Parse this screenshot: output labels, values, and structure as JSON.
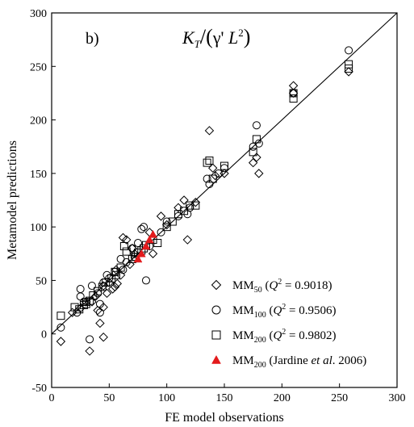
{
  "chart_data": {
    "type": "scatter",
    "panel_label": "b)",
    "formula": "K_T/(γ' L^2)",
    "xlabel": "FE model observations",
    "ylabel": "Metamodel predictions",
    "xlim": [
      0,
      300
    ],
    "ylim": [
      -50,
      300
    ],
    "x_ticks": [
      0,
      50,
      100,
      150,
      200,
      250,
      300
    ],
    "y_ticks": [
      -50,
      0,
      50,
      100,
      150,
      200,
      250,
      300
    ],
    "reference_line": "y = x",
    "legend_position": "bottom-right",
    "series": [
      {
        "name": "MM50 (Q2 = 0.9018)",
        "label": {
          "base": "MM",
          "sub": "50",
          "q2_text": " = 0.9018)"
        },
        "marker": "diamond",
        "color": "#000000",
        "points": [
          [
            8,
            -7
          ],
          [
            33,
            -16
          ],
          [
            45,
            -3
          ],
          [
            42,
            10
          ],
          [
            18,
            20
          ],
          [
            25,
            24
          ],
          [
            30,
            30
          ],
          [
            35,
            30
          ],
          [
            38,
            35
          ],
          [
            45,
            45
          ],
          [
            50,
            48
          ],
          [
            55,
            44
          ],
          [
            57,
            47
          ],
          [
            40,
            22
          ],
          [
            45,
            25
          ],
          [
            60,
            55
          ],
          [
            62,
            90
          ],
          [
            65,
            88
          ],
          [
            70,
            80
          ],
          [
            72,
            75
          ],
          [
            85,
            95
          ],
          [
            88,
            75
          ],
          [
            95,
            110
          ],
          [
            100,
            102
          ],
          [
            110,
            118
          ],
          [
            115,
            125
          ],
          [
            118,
            88
          ],
          [
            125,
            123
          ],
          [
            137,
            190
          ],
          [
            140,
            155
          ],
          [
            142,
            148
          ],
          [
            150,
            150
          ],
          [
            175,
            160
          ],
          [
            178,
            165
          ],
          [
            180,
            150
          ],
          [
            210,
            225
          ],
          [
            210,
            232
          ],
          [
            258,
            245
          ],
          [
            53,
            42
          ],
          [
            48,
            38
          ],
          [
            56,
            60
          ],
          [
            68,
            65
          ]
        ]
      },
      {
        "name": "MM100 (Q2 = 0.9506)",
        "label": {
          "base": "MM",
          "sub": "100",
          "q2_text": " = 0.9506)"
        },
        "marker": "circle",
        "color": "#000000",
        "points": [
          [
            8,
            6
          ],
          [
            22,
            20
          ],
          [
            25,
            35
          ],
          [
            25,
            42
          ],
          [
            28,
            30
          ],
          [
            33,
            -5
          ],
          [
            35,
            45
          ],
          [
            42,
            28
          ],
          [
            42,
            20
          ],
          [
            45,
            48
          ],
          [
            50,
            52
          ],
          [
            55,
            58
          ],
          [
            60,
            70
          ],
          [
            62,
            60
          ],
          [
            70,
            80
          ],
          [
            72,
            72
          ],
          [
            75,
            85
          ],
          [
            78,
            98
          ],
          [
            80,
            100
          ],
          [
            82,
            50
          ],
          [
            85,
            82
          ],
          [
            95,
            95
          ],
          [
            100,
            105
          ],
          [
            110,
            110
          ],
          [
            118,
            112
          ],
          [
            120,
            118
          ],
          [
            135,
            145
          ],
          [
            137,
            140
          ],
          [
            145,
            150
          ],
          [
            150,
            155
          ],
          [
            175,
            175
          ],
          [
            178,
            195
          ],
          [
            180,
            178
          ],
          [
            210,
            225
          ],
          [
            258,
            265
          ],
          [
            40,
            38
          ],
          [
            48,
            55
          ],
          [
            65,
            67
          ]
        ]
      },
      {
        "name": "MM200 (Q2 = 0.9802)",
        "label": {
          "base": "MM",
          "sub": "200",
          "q2_text": " = 0.9802)"
        },
        "marker": "square",
        "color": "#000000",
        "points": [
          [
            8,
            17
          ],
          [
            20,
            25
          ],
          [
            24,
            23
          ],
          [
            28,
            27
          ],
          [
            30,
            30
          ],
          [
            33,
            31
          ],
          [
            36,
            36
          ],
          [
            40,
            40
          ],
          [
            44,
            44
          ],
          [
            47,
            48
          ],
          [
            52,
            52
          ],
          [
            56,
            55
          ],
          [
            60,
            62
          ],
          [
            63,
            82
          ],
          [
            65,
            77
          ],
          [
            70,
            70
          ],
          [
            73,
            72
          ],
          [
            75,
            76
          ],
          [
            78,
            78
          ],
          [
            80,
            80
          ],
          [
            82,
            83
          ],
          [
            88,
            88
          ],
          [
            92,
            85
          ],
          [
            100,
            100
          ],
          [
            105,
            105
          ],
          [
            110,
            112
          ],
          [
            115,
            115
          ],
          [
            120,
            120
          ],
          [
            125,
            120
          ],
          [
            135,
            160
          ],
          [
            137,
            162
          ],
          [
            140,
            145
          ],
          [
            150,
            157
          ],
          [
            175,
            170
          ],
          [
            178,
            182
          ],
          [
            210,
            220
          ],
          [
            210,
            225
          ],
          [
            258,
            252
          ],
          [
            258,
            248
          ],
          [
            30,
            28
          ],
          [
            55,
            58
          ]
        ]
      },
      {
        "name": "MM200 (Jardine et al. 2006)",
        "label": {
          "base": "MM",
          "sub": "200",
          "pre": " (Jardine ",
          "ital": "et al",
          "post": ". 2006)"
        },
        "marker": "triangle",
        "color": "#e31a1c",
        "points": [
          [
            75,
            70
          ],
          [
            78,
            75
          ],
          [
            82,
            82
          ],
          [
            85,
            88
          ],
          [
            88,
            93
          ]
        ]
      }
    ]
  }
}
